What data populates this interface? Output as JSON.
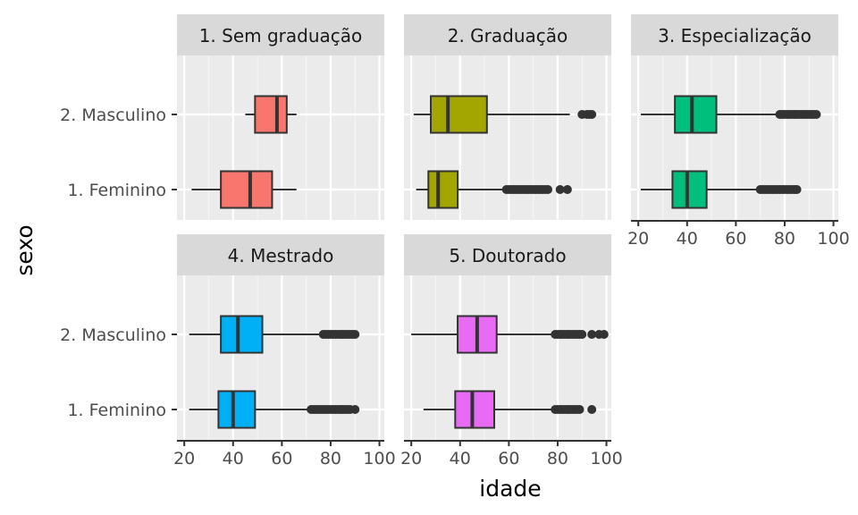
{
  "chart_data": {
    "type": "boxplot",
    "xlabel": "idade",
    "ylabel": "sexo",
    "xlim": [
      17,
      102
    ],
    "x_ticks": [
      20,
      40,
      60,
      80,
      100
    ],
    "categories": [
      "1. Feminino",
      "2. Masculino"
    ],
    "grid": true,
    "facets": [
      {
        "label": "1. Sem graduação",
        "fill": "#F8766D",
        "boxes": [
          {
            "category": "1. Feminino",
            "min": 23,
            "q1": 35,
            "median": 47,
            "q3": 56,
            "max": 66,
            "outliers": []
          },
          {
            "category": "2. Masculino",
            "min": 45,
            "q1": 49,
            "median": 58,
            "q3": 62,
            "max": 66,
            "outliers": []
          }
        ]
      },
      {
        "label": "2. Graduação",
        "fill": "#A3A500",
        "boxes": [
          {
            "category": "1. Feminino",
            "min": 22,
            "q1": 27,
            "median": 31,
            "q3": 39,
            "max": 58,
            "outliers": [
              59,
              60,
              61,
              62,
              63,
              64,
              65,
              66,
              67,
              68,
              69,
              70,
              71,
              72,
              73,
              74,
              75,
              76,
              81,
              84
            ]
          },
          {
            "category": "2. Masculino",
            "min": 21,
            "q1": 28,
            "median": 35,
            "q3": 51,
            "max": 85,
            "outliers": [
              90,
              92,
              93,
              94
            ]
          }
        ]
      },
      {
        "label": "3. Especialização",
        "fill": "#00BF7D",
        "boxes": [
          {
            "category": "1. Feminino",
            "min": 21,
            "q1": 34,
            "median": 40,
            "q3": 48,
            "max": 69,
            "outliers": [
              70,
              71,
              72,
              73,
              74,
              75,
              76,
              77,
              78,
              79,
              80,
              81,
              82,
              83,
              84,
              85
            ]
          },
          {
            "category": "2. Masculino",
            "min": 21,
            "q1": 35,
            "median": 42,
            "q3": 52,
            "max": 77,
            "outliers": [
              78,
              79,
              80,
              81,
              82,
              83,
              84,
              85,
              86,
              87,
              88,
              89,
              90,
              91,
              92,
              93
            ]
          }
        ]
      },
      {
        "label": "4. Mestrado",
        "fill": "#00B0F6",
        "boxes": [
          {
            "category": "1. Feminino",
            "min": 22,
            "q1": 34,
            "median": 40,
            "q3": 49,
            "max": 71,
            "outliers": [
              72,
              73,
              74,
              75,
              76,
              77,
              78,
              79,
              80,
              81,
              82,
              83,
              84,
              85,
              86,
              87,
              88,
              90
            ]
          },
          {
            "category": "2. Masculino",
            "min": 22,
            "q1": 35,
            "median": 42,
            "q3": 52,
            "max": 76,
            "outliers": [
              77,
              78,
              79,
              80,
              81,
              82,
              83,
              84,
              85,
              86,
              87,
              88,
              89,
              90
            ]
          }
        ]
      },
      {
        "label": "5. Doutorado",
        "fill": "#E76BF3",
        "boxes": [
          {
            "category": "1. Feminino",
            "min": 25,
            "q1": 38,
            "median": 45,
            "q3": 54,
            "max": 78,
            "outliers": [
              79,
              80,
              81,
              82,
              83,
              84,
              85,
              86,
              87,
              88,
              89,
              94
            ]
          },
          {
            "category": "2. Masculino",
            "min": 20,
            "q1": 39,
            "median": 47,
            "q3": 55,
            "max": 78,
            "outliers": [
              79,
              80,
              81,
              82,
              83,
              84,
              85,
              86,
              87,
              88,
              89,
              90,
              94,
              97,
              99
            ]
          }
        ]
      }
    ]
  }
}
